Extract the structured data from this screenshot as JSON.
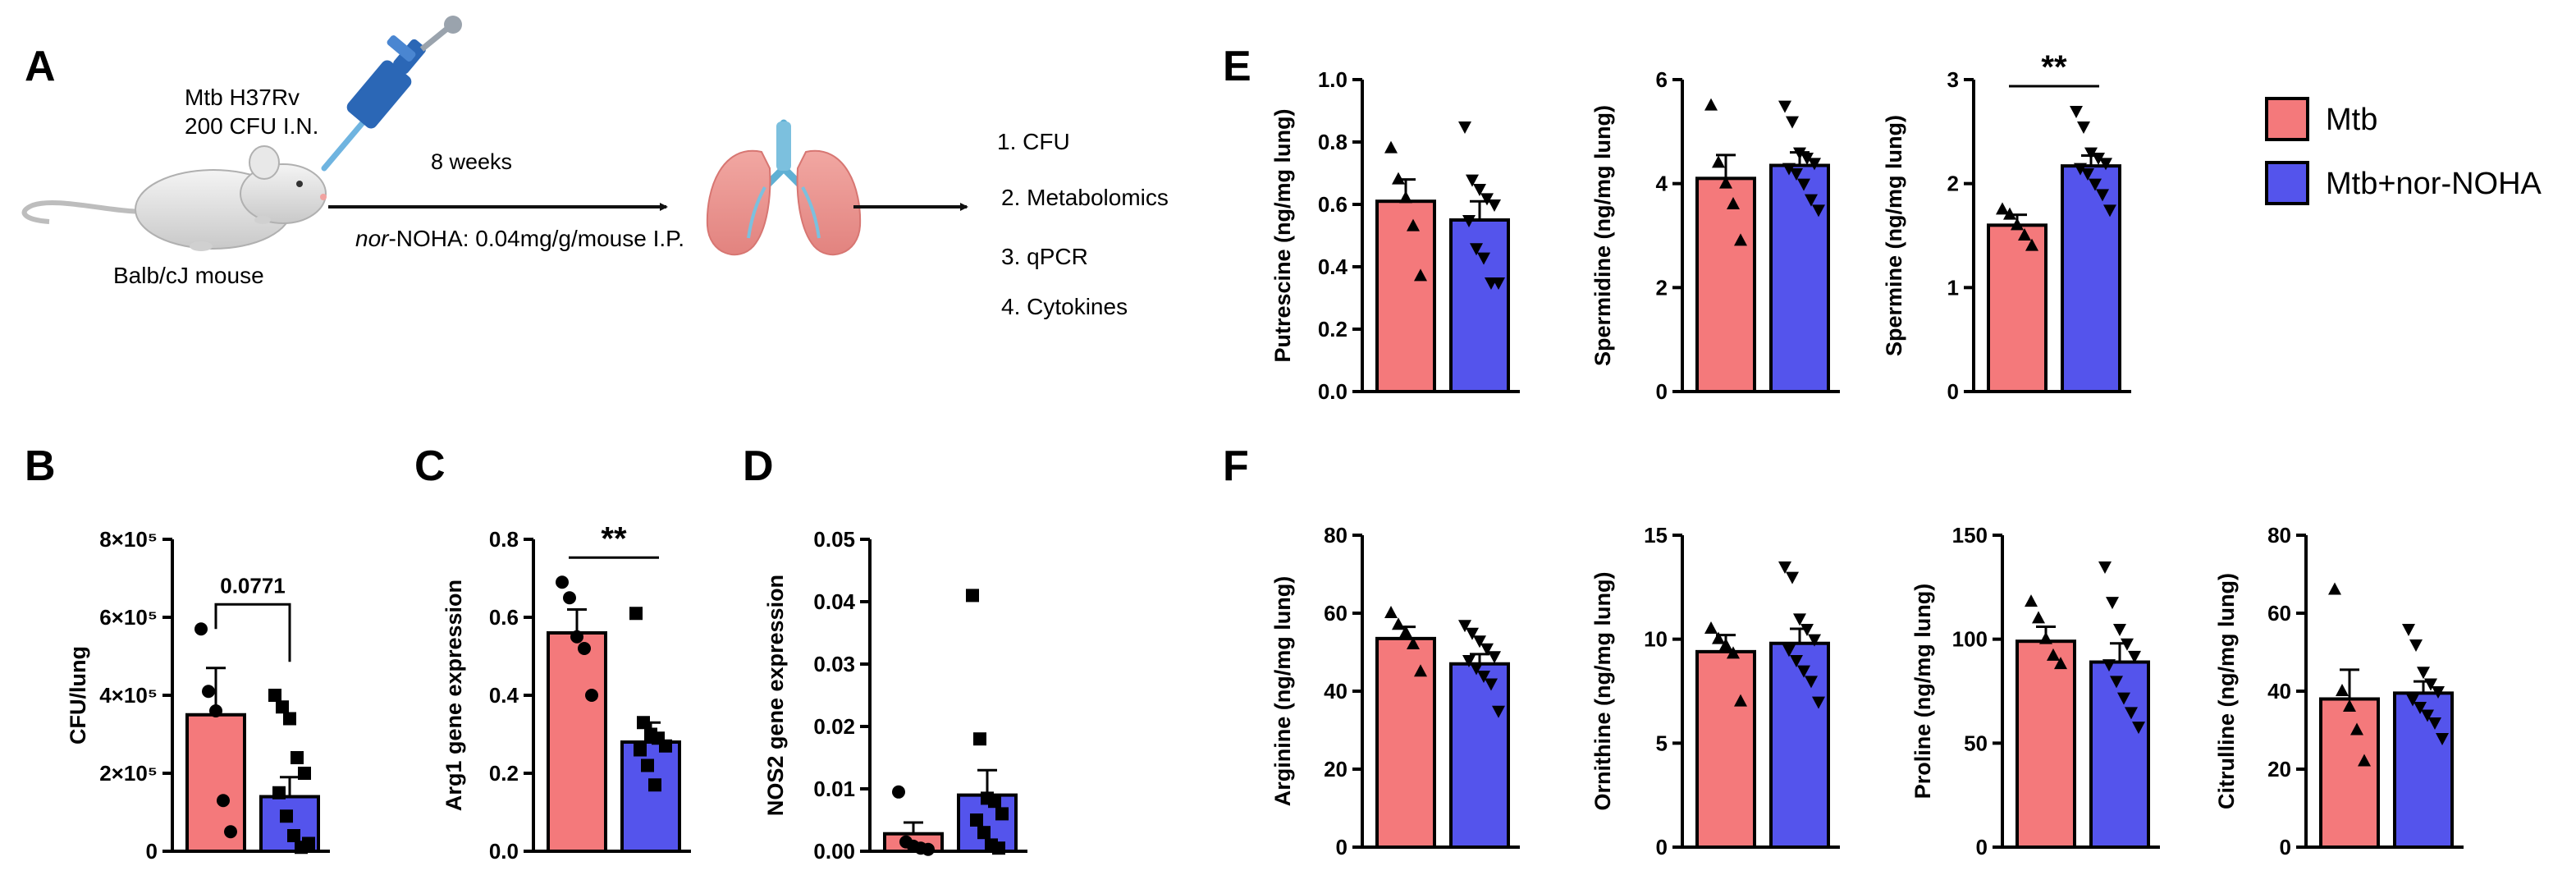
{
  "colors": {
    "mtb": "#f4797b",
    "nohoa": "#5454ec",
    "axis": "#000000"
  },
  "panel_a": {
    "letter": "A",
    "infection": [
      "Mtb H37Rv",
      "200 CFU I.N."
    ],
    "duration": "8 weeks",
    "mouse": "Balb/cJ mouse",
    "treatment_italic": "nor",
    "treatment_rest": "-NOHA: 0.04mg/g/mouse I.P.",
    "readouts": [
      "1. CFU",
      "2. Metabolomics",
      "3. qPCR",
      "4. Cytokines"
    ]
  },
  "legend": {
    "items": [
      "Mtb",
      "Mtb+nor-NOHA"
    ]
  },
  "chart_data": [
    {
      "id": "B",
      "letter": "B",
      "type": "bar",
      "ylabel": "CFU/lung",
      "ylim": [
        0,
        800000
      ],
      "ticks": [
        0,
        200000,
        400000,
        600000,
        800000
      ],
      "tick_labels": [
        "0",
        "2×10⁵",
        "4×10⁵",
        "6×10⁵",
        "8×10⁵"
      ],
      "categories": [
        "Mtb",
        "Mtb+nor-NOHA"
      ],
      "values": [
        350000,
        140000
      ],
      "sem": [
        120000,
        50000
      ],
      "points": [
        [
          570000,
          410000,
          360000,
          130000,
          50000
        ],
        [
          400000,
          370000,
          340000,
          240000,
          200000,
          150000,
          90000,
          40000,
          10000,
          20000
        ]
      ],
      "markers": [
        "circle",
        "square"
      ],
      "sig": {
        "label": "0.0771",
        "bracket": true
      }
    },
    {
      "id": "C",
      "letter": "C",
      "type": "bar",
      "ylabel": "Arg1 gene expression",
      "ylim": [
        0,
        0.8
      ],
      "ticks": [
        0,
        0.2,
        0.4,
        0.6,
        0.8
      ],
      "tick_labels": [
        "0.0",
        "0.2",
        "0.4",
        "0.6",
        "0.8"
      ],
      "categories": [
        "Mtb",
        "Mtb+nor-NOHA"
      ],
      "values": [
        0.56,
        0.28
      ],
      "sem": [
        0.06,
        0.05
      ],
      "points": [
        [
          0.69,
          0.65,
          0.55,
          0.52,
          0.4
        ],
        [
          0.61,
          0.33,
          0.3,
          0.29,
          0.27,
          0.26,
          0.22,
          0.17
        ]
      ],
      "markers": [
        "circle",
        "square"
      ],
      "sig": {
        "label": "**",
        "bracket": false
      }
    },
    {
      "id": "D",
      "letter": "D",
      "type": "bar",
      "ylabel": "NOS2 gene expression",
      "ylim": [
        0,
        0.05
      ],
      "ticks": [
        0,
        0.01,
        0.02,
        0.03,
        0.04,
        0.05
      ],
      "tick_labels": [
        "0.00",
        "0.01",
        "0.02",
        "0.03",
        "0.04",
        "0.05"
      ],
      "categories": [
        "Mtb",
        "Mtb+nor-NOHA"
      ],
      "values": [
        0.0028,
        0.009
      ],
      "sem": [
        0.0018,
        0.004
      ],
      "points": [
        [
          0.0095,
          0.0015,
          0.0008,
          0.0005,
          0.0003
        ],
        [
          0.041,
          0.018,
          0.0085,
          0.008,
          0.006,
          0.005,
          0.003,
          0.001,
          0.0005
        ]
      ],
      "markers": [
        "circle",
        "square"
      ],
      "sig": null
    },
    {
      "id": "E1",
      "letter": "E",
      "type": "bar",
      "ylabel": "Putrescine (ng/mg lung)",
      "ylim": [
        0,
        1.0
      ],
      "ticks": [
        0,
        0.2,
        0.4,
        0.6,
        0.8,
        1.0
      ],
      "tick_labels": [
        "0.0",
        "0.2",
        "0.4",
        "0.6",
        "0.8",
        "1.0"
      ],
      "categories": [
        "Mtb",
        "Mtb+nor-NOHA"
      ],
      "values": [
        0.61,
        0.55
      ],
      "sem": [
        0.07,
        0.06
      ],
      "points": [
        [
          0.78,
          0.68,
          0.62,
          0.53,
          0.37
        ],
        [
          0.85,
          0.68,
          0.65,
          0.62,
          0.6,
          0.55,
          0.46,
          0.43,
          0.35,
          0.35
        ]
      ],
      "markers": [
        "triangle",
        "triangle-down"
      ],
      "sig": null
    },
    {
      "id": "E2",
      "letter": "",
      "type": "bar",
      "ylabel": "Spermidine (ng/mg lung)",
      "ylim": [
        0,
        6
      ],
      "ticks": [
        0,
        2,
        4,
        6
      ],
      "tick_labels": [
        "0",
        "2",
        "4",
        "6"
      ],
      "categories": [
        "Mtb",
        "Mtb+nor-NOHA"
      ],
      "values": [
        4.1,
        4.35
      ],
      "sem": [
        0.45,
        0.25
      ],
      "points": [
        [
          5.5,
          4.4,
          4.0,
          3.6,
          2.9
        ],
        [
          5.5,
          5.2,
          4.6,
          4.5,
          4.4,
          4.3,
          4.2,
          4.0,
          3.7,
          3.5
        ]
      ],
      "markers": [
        "triangle",
        "triangle-down"
      ],
      "sig": null
    },
    {
      "id": "E3",
      "letter": "",
      "type": "bar",
      "ylabel": "Spermine (ng/mg lung)",
      "ylim": [
        0,
        3
      ],
      "ticks": [
        0,
        1,
        2,
        3
      ],
      "tick_labels": [
        "0",
        "1",
        "2",
        "3"
      ],
      "categories": [
        "Mtb",
        "Mtb+nor-NOHA"
      ],
      "values": [
        1.6,
        2.17
      ],
      "sem": [
        0.1,
        0.1
      ],
      "points": [
        [
          1.75,
          1.7,
          1.6,
          1.5,
          1.4
        ],
        [
          2.7,
          2.55,
          2.3,
          2.25,
          2.2,
          2.15,
          2.1,
          2.0,
          1.9,
          1.75
        ]
      ],
      "markers": [
        "triangle",
        "triangle-down"
      ],
      "sig": {
        "label": "**",
        "bracket": false
      }
    },
    {
      "id": "F1",
      "letter": "F",
      "type": "bar",
      "ylabel": "Arginine (ng/mg lung)",
      "ylim": [
        0,
        80
      ],
      "ticks": [
        0,
        20,
        40,
        60,
        80
      ],
      "tick_labels": [
        "0",
        "20",
        "40",
        "60",
        "80"
      ],
      "categories": [
        "Mtb",
        "Mtb+nor-NOHA"
      ],
      "values": [
        53.5,
        47
      ],
      "sem": [
        3,
        2.5
      ],
      "points": [
        [
          60,
          57,
          55,
          52,
          45
        ],
        [
          57,
          55,
          53,
          51,
          49,
          48,
          46,
          44,
          42,
          35
        ]
      ],
      "markers": [
        "triangle",
        "triangle-down"
      ],
      "sig": null
    },
    {
      "id": "F2",
      "letter": "",
      "type": "bar",
      "ylabel": "Ornithine (ng/mg lung)",
      "ylim": [
        0,
        15
      ],
      "ticks": [
        0,
        5,
        10,
        15
      ],
      "tick_labels": [
        "0",
        "5",
        "10",
        "15"
      ],
      "categories": [
        "Mtb",
        "Mtb+nor-NOHA"
      ],
      "values": [
        9.4,
        9.8
      ],
      "sem": [
        0.8,
        0.7
      ],
      "points": [
        [
          10.5,
          10.0,
          9.7,
          9.3,
          7.0
        ],
        [
          13.5,
          13.0,
          11.0,
          10.5,
          10.0,
          9.5,
          9.0,
          8.5,
          8.0,
          7.0
        ]
      ],
      "markers": [
        "triangle",
        "triangle-down"
      ],
      "sig": null
    },
    {
      "id": "F3",
      "letter": "",
      "type": "bar",
      "ylabel": "Proline (ng/mg lung)",
      "ylim": [
        0,
        150
      ],
      "ticks": [
        0,
        50,
        100,
        150
      ],
      "tick_labels": [
        "0",
        "50",
        "100",
        "150"
      ],
      "categories": [
        "Mtb",
        "Mtb+nor-NOHA"
      ],
      "values": [
        99,
        89
      ],
      "sem": [
        7,
        9
      ],
      "points": [
        [
          118,
          110,
          100,
          92,
          88
        ],
        [
          135,
          118,
          105,
          98,
          92,
          88,
          80,
          72,
          65,
          58
        ]
      ],
      "markers": [
        "triangle",
        "triangle-down"
      ],
      "sig": null
    },
    {
      "id": "F4",
      "letter": "",
      "type": "bar",
      "ylabel": "Citrulline (ng/mg lung)",
      "ylim": [
        0,
        80
      ],
      "ticks": [
        0,
        20,
        40,
        60,
        80
      ],
      "tick_labels": [
        "0",
        "20",
        "40",
        "60",
        "80"
      ],
      "categories": [
        "Mtb",
        "Mtb+nor-NOHA"
      ],
      "values": [
        38,
        39.5
      ],
      "sem": [
        7.5,
        3
      ],
      "points": [
        [
          66,
          40,
          36,
          30,
          22
        ],
        [
          56,
          52,
          45,
          42,
          40,
          38,
          36,
          34,
          32,
          28
        ]
      ],
      "markers": [
        "triangle",
        "triangle-down"
      ],
      "sig": null
    }
  ]
}
